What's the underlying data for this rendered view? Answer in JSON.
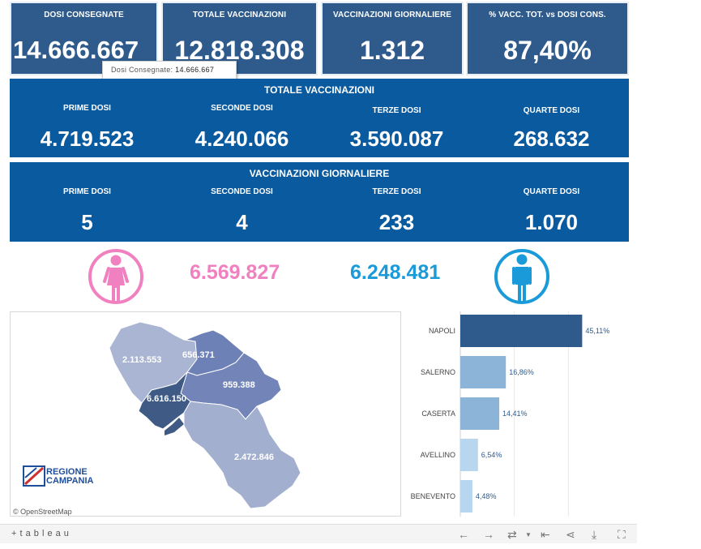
{
  "kpis": {
    "dosi_consegnate": {
      "label": "DOSI CONSEGNATE",
      "value": "14.666.667"
    },
    "totale_vaccinazioni": {
      "label": "TOTALE VACCINAZIONI",
      "value": "12.818.308"
    },
    "vaccinazioni_giornaliere": {
      "label": "VACCINAZIONI GIORNALIERE",
      "value": "1.312"
    },
    "percentuale": {
      "label": "% VACC. TOT. vs DOSI CONS.",
      "value": "87,40%"
    }
  },
  "tooltip": {
    "label": "Dosi Consegnate:",
    "value": "14.666.667"
  },
  "totale_panel": {
    "title": "TOTALE VACCINAZIONI",
    "cols": [
      {
        "label": "PRIME DOSI",
        "value": "4.719.523"
      },
      {
        "label": "SECONDE DOSI",
        "value": "4.240.066"
      },
      {
        "label": "TERZE DOSI",
        "value": "3.590.087"
      },
      {
        "label": "QUARTE DOSI",
        "value": "268.632"
      }
    ]
  },
  "giornaliere_panel": {
    "title": "VACCINAZIONI GIORNALIERE",
    "cols": [
      {
        "label": "PRIME DOSI",
        "value": "5"
      },
      {
        "label": "SECONDE DOSI",
        "value": "4"
      },
      {
        "label": "TERZE DOSI",
        "value": "233"
      },
      {
        "label": "QUARTE DOSI",
        "value": "1.070"
      }
    ]
  },
  "gender": {
    "female_value": "6.569.827",
    "male_value": "6.248.481",
    "female_color": "#f080c0",
    "male_color": "#1a9ad8"
  },
  "map": {
    "provinces": [
      {
        "name": "caserta",
        "value": "2.113.553",
        "color": "#a9b5d3"
      },
      {
        "name": "benevento",
        "value": "656.371",
        "color": "#6e81b6"
      },
      {
        "name": "avellino",
        "value": "959.388",
        "color": "#7384b9"
      },
      {
        "name": "napoli",
        "value": "6.616.150",
        "color": "#3e5a85"
      },
      {
        "name": "salerno",
        "value": "2.472.846",
        "color": "#a3afcf"
      }
    ],
    "logo_line1": "REGIONE",
    "logo_line2": "CAMPANIA",
    "attribution": "© OpenStreetMap"
  },
  "chart_data": {
    "type": "bar",
    "orientation": "horizontal",
    "categories": [
      "NAPOLI",
      "SALERNO",
      "CASERTA",
      "AVELLINO",
      "BENEVENTO"
    ],
    "values": [
      45.11,
      16.86,
      14.41,
      6.54,
      4.48
    ],
    "value_labels": [
      "45,11%",
      "16,86%",
      "14,41%",
      "6,54%",
      "4,48%"
    ],
    "colors": [
      "#2e5b8c",
      "#8cb4d8",
      "#8cb4d8",
      "#b8d6ee",
      "#b8d6ee"
    ],
    "xlim": [
      0,
      60
    ],
    "grid": true
  },
  "footer": {
    "brand": "+ t a b l e a u"
  }
}
